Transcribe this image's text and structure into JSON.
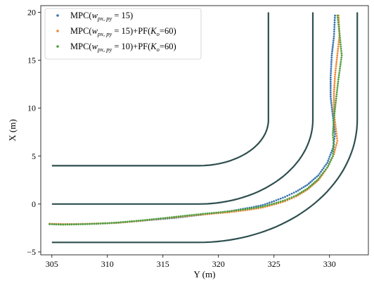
{
  "chart_data": {
    "type": "scatter",
    "xlabel": "Y (m)",
    "ylabel": "X (m)",
    "xlim": [
      304,
      333.5
    ],
    "ylim": [
      -5.3,
      20.7
    ],
    "xticks": [
      "305",
      "310",
      "315",
      "320",
      "325",
      "330"
    ],
    "yticks": [
      "−5",
      "0",
      "5",
      "10",
      "15",
      "20"
    ],
    "xtick_values": [
      305,
      310,
      315,
      320,
      325,
      330
    ],
    "ytick_values": [
      -5,
      0,
      5,
      10,
      15,
      20
    ],
    "grid": false,
    "legend_placement": "top-left",
    "road_color": "#2f4f4f",
    "series": [
      {
        "name": "MPC(w_{p_x,p_y} = 15)",
        "legend_main": "MPC(",
        "legend_w": "w",
        "legend_sub": "px, py",
        "legend_tail": " = 15)",
        "color": "#3b75af",
        "points": [
          [
            304.8,
            -2.1
          ],
          [
            306,
            -2.1
          ],
          [
            307,
            -2.1
          ],
          [
            308,
            -2.08
          ],
          [
            309,
            -2.05
          ],
          [
            310,
            -2.0
          ],
          [
            311,
            -1.95
          ],
          [
            312,
            -1.85
          ],
          [
            313,
            -1.75
          ],
          [
            314,
            -1.65
          ],
          [
            315,
            -1.55
          ],
          [
            316,
            -1.45
          ],
          [
            317,
            -1.32
          ],
          [
            318,
            -1.18
          ],
          [
            319,
            -1.05
          ],
          [
            320,
            -0.9
          ],
          [
            321,
            -0.75
          ],
          [
            322,
            -0.55
          ],
          [
            323,
            -0.35
          ],
          [
            324,
            -0.1
          ],
          [
            325,
            0.3
          ],
          [
            326,
            0.75
          ],
          [
            327,
            1.3
          ],
          [
            328,
            2.0
          ],
          [
            329,
            3.0
          ],
          [
            329.8,
            4.3
          ],
          [
            330.3,
            5.8
          ],
          [
            330.5,
            7.3
          ],
          [
            330.3,
            9.2
          ],
          [
            330.1,
            11.2
          ],
          [
            330.1,
            13.2
          ],
          [
            330.2,
            15.5
          ],
          [
            330.4,
            17.5
          ],
          [
            330.5,
            19.9
          ]
        ]
      },
      {
        "name": "MPC(w_{p_x,p_y} = 15)+PF(K_o=60)",
        "legend_main": "MPC(",
        "legend_w": "w",
        "legend_sub": "px, py",
        "legend_tail": " = 15)+PF(",
        "legend_k": "K",
        "legend_ksub": "o",
        "legend_kval": "=60)",
        "color": "#ef8636",
        "points": [
          [
            304.8,
            -2.05
          ],
          [
            306,
            -2.1
          ],
          [
            307,
            -2.1
          ],
          [
            308,
            -2.07
          ],
          [
            309,
            -2.03
          ],
          [
            310,
            -2.0
          ],
          [
            311,
            -1.95
          ],
          [
            312,
            -1.85
          ],
          [
            313,
            -1.75
          ],
          [
            314,
            -1.62
          ],
          [
            315,
            -1.5
          ],
          [
            316,
            -1.4
          ],
          [
            317,
            -1.28
          ],
          [
            318,
            -1.15
          ],
          [
            319,
            -1.05
          ],
          [
            320,
            -0.95
          ],
          [
            321,
            -0.85
          ],
          [
            322,
            -0.7
          ],
          [
            323,
            -0.55
          ],
          [
            324,
            -0.35
          ],
          [
            325,
            -0.05
          ],
          [
            326,
            0.3
          ],
          [
            327,
            0.8
          ],
          [
            328,
            1.5
          ],
          [
            329,
            2.5
          ],
          [
            329.8,
            3.8
          ],
          [
            330.4,
            5.2
          ],
          [
            330.7,
            6.6
          ],
          [
            330.6,
            7.6
          ],
          [
            330.4,
            9.5
          ],
          [
            330.4,
            11.5
          ],
          [
            330.5,
            13.5
          ],
          [
            330.7,
            15.5
          ],
          [
            330.9,
            17.6
          ],
          [
            330.8,
            19.9
          ]
        ]
      },
      {
        "name": "MPC(w_{p_x,p_y} = 10)+PF(K_o=60)",
        "legend_main": "MPC(",
        "legend_w": "w",
        "legend_sub": "px, py",
        "legend_tail": " = 10)+PF(",
        "legend_k": "K",
        "legend_ksub": "o",
        "legend_kval": "=60)",
        "color": "#519e3e",
        "points": [
          [
            304.8,
            -2.1
          ],
          [
            306,
            -2.15
          ],
          [
            307,
            -2.12
          ],
          [
            308,
            -2.1
          ],
          [
            309,
            -2.05
          ],
          [
            310,
            -2.0
          ],
          [
            311,
            -1.92
          ],
          [
            312,
            -1.82
          ],
          [
            313,
            -1.72
          ],
          [
            314,
            -1.6
          ],
          [
            315,
            -1.48
          ],
          [
            316,
            -1.35
          ],
          [
            317,
            -1.22
          ],
          [
            318,
            -1.1
          ],
          [
            319,
            -0.98
          ],
          [
            320,
            -0.88
          ],
          [
            321,
            -0.75
          ],
          [
            322,
            -0.6
          ],
          [
            323,
            -0.45
          ],
          [
            324,
            -0.25
          ],
          [
            325,
            0.05
          ],
          [
            326,
            0.4
          ],
          [
            327,
            0.9
          ],
          [
            328,
            1.6
          ],
          [
            329,
            2.6
          ],
          [
            329.8,
            3.8
          ],
          [
            330.3,
            5.0
          ],
          [
            330.4,
            6.2
          ],
          [
            330.3,
            7.2
          ],
          [
            330.4,
            9.0
          ],
          [
            330.6,
            11.0
          ],
          [
            330.8,
            13.0
          ],
          [
            331.1,
            15.5
          ],
          [
            330.9,
            17.8
          ],
          [
            330.7,
            19.9
          ]
        ]
      }
    ]
  }
}
